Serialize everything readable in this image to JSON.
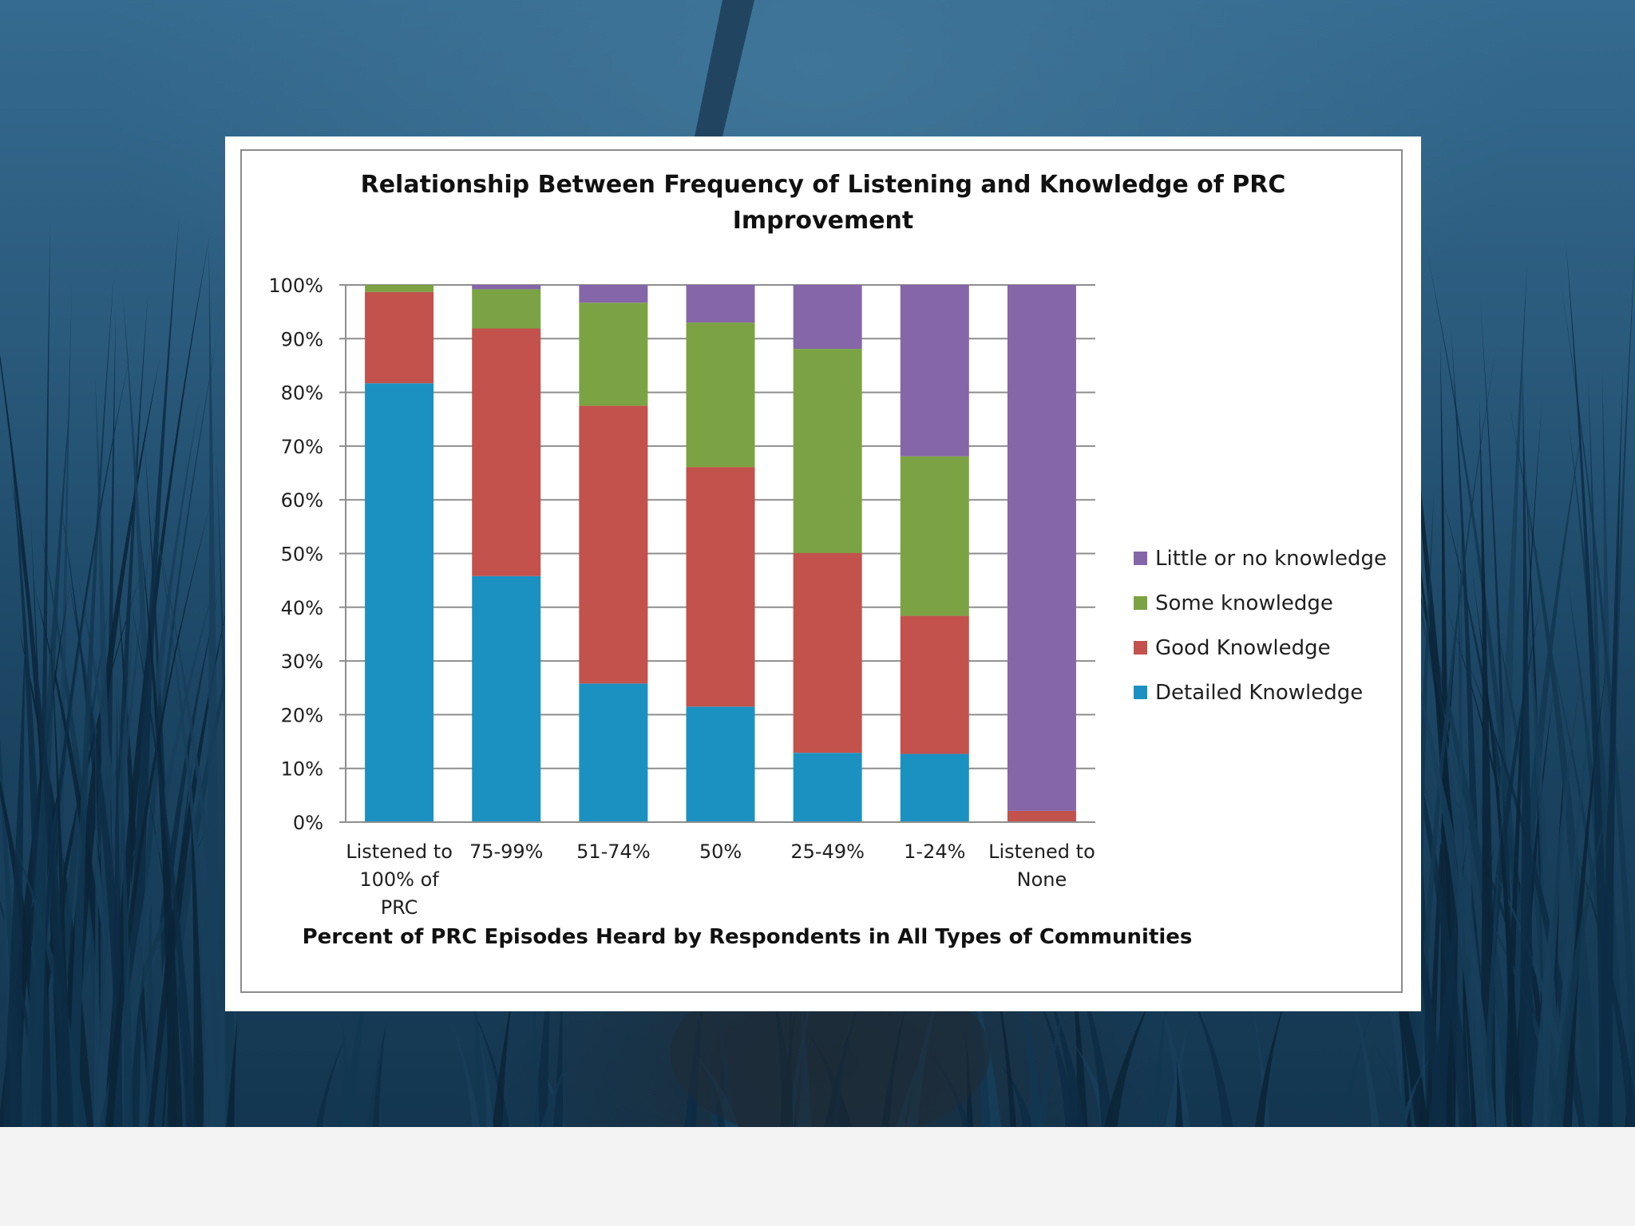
{
  "chart_data": {
    "type": "bar",
    "stacked": true,
    "title": "Relationship Between Frequency of Listening and Knowledge of PRC Improvement",
    "title_lines": [
      "Relationship Between Frequency of Listening and Knowledge of PRC",
      "Improvement"
    ],
    "xlabel": "Percent of PRC Episodes Heard by Respondents in All Types of Communities",
    "ylabel": "",
    "ylim": [
      0,
      100
    ],
    "yticks": [
      0,
      10,
      20,
      30,
      40,
      50,
      60,
      70,
      80,
      90,
      100
    ],
    "ytick_suffix": "%",
    "grid": true,
    "legend_position": "right",
    "categories": [
      "Listened to 100% of PRC",
      "75-99%",
      "51-74%",
      "50%",
      "25-49%",
      "1-24%",
      "Listened to None"
    ],
    "category_lines": [
      [
        "Listened to",
        "100% of",
        "PRC"
      ],
      [
        "75-99%"
      ],
      [
        "51-74%"
      ],
      [
        "50%"
      ],
      [
        "25-49%"
      ],
      [
        "1-24%"
      ],
      [
        "Listened to",
        "None"
      ]
    ],
    "series": [
      {
        "name": "Detailed Knowledge",
        "color": "#1b91c2",
        "values": [
          81.7,
          45.8,
          25.8,
          21.5,
          12.9,
          12.7,
          0.0
        ]
      },
      {
        "name": "Good Knowledge",
        "color": "#c3514c",
        "values": [
          17.0,
          46.1,
          51.7,
          44.6,
          37.2,
          25.7,
          2.1
        ]
      },
      {
        "name": "Some knowledge",
        "color": "#7ba343",
        "values": [
          1.3,
          7.3,
          19.2,
          26.9,
          38.0,
          29.7,
          0.0
        ]
      },
      {
        "name": "Little or no knowledge",
        "color": "#8566a8",
        "values": [
          0.0,
          0.8,
          3.3,
          7.0,
          11.9,
          31.9,
          97.9
        ]
      }
    ]
  }
}
